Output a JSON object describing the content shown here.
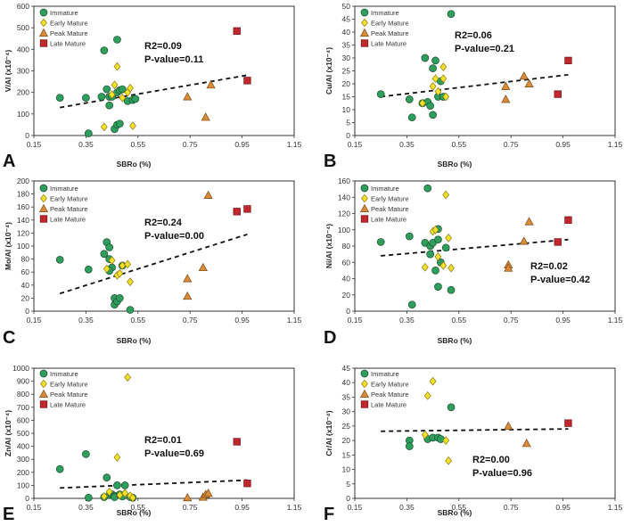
{
  "figure": {
    "legend_entries": [
      "Immature",
      "Early Mature",
      "Peak Mature",
      "Late Mature"
    ],
    "group_colors": {
      "Immature": "#2e9e5c",
      "Early Mature": "#f5e12a",
      "Peak Mature": "#d98c3a",
      "Late Mature": "#c0282d"
    }
  },
  "chart_data": [
    {
      "type": "scatter",
      "panel": "A",
      "xlabel": "SBRo (%)",
      "ylabel": "V/Al (x10⁻⁴)",
      "xlim": [
        0.15,
        1.15
      ],
      "ylim": [
        0,
        600
      ],
      "xticks": [
        "0.15",
        "0.35",
        "0.55",
        "0.75",
        "0.95",
        "1.15"
      ],
      "yticks": [
        "0",
        "100",
        "200",
        "300",
        "400",
        "500",
        "600"
      ],
      "stat_r2": "R2=0.09",
      "stat_p": "P-value=0.11",
      "trend": [
        [
          0.25,
          130
        ],
        [
          0.97,
          280
        ]
      ],
      "series": [
        {
          "name": "Immature",
          "points": [
            [
              0.25,
              175
            ],
            [
              0.35,
              175
            ],
            [
              0.36,
              10
            ],
            [
              0.41,
              180
            ],
            [
              0.42,
              395
            ],
            [
              0.43,
              215
            ],
            [
              0.44,
              180
            ],
            [
              0.44,
              140
            ],
            [
              0.45,
              180
            ],
            [
              0.46,
              30
            ],
            [
              0.47,
              50
            ],
            [
              0.47,
              200
            ],
            [
              0.48,
              55
            ],
            [
              0.48,
              210
            ],
            [
              0.51,
              160
            ],
            [
              0.53,
              165
            ],
            [
              0.54,
              170
            ],
            [
              0.47,
              445
            ],
            [
              0.49,
              215
            ]
          ]
        },
        {
          "name": "Early Mature",
          "points": [
            [
              0.42,
              40
            ],
            [
              0.45,
              190
            ],
            [
              0.46,
              235
            ],
            [
              0.47,
              320
            ],
            [
              0.49,
              175
            ],
            [
              0.51,
              200
            ],
            [
              0.52,
              220
            ],
            [
              0.53,
              45
            ]
          ]
        },
        {
          "name": "Peak Mature",
          "points": [
            [
              0.74,
              180
            ],
            [
              0.81,
              85
            ],
            [
              0.83,
              235
            ]
          ]
        },
        {
          "name": "Late Mature",
          "points": [
            [
              0.93,
              485
            ],
            [
              0.97,
              255
            ]
          ]
        }
      ]
    },
    {
      "type": "scatter",
      "panel": "B",
      "xlabel": "SBRo (%)",
      "ylabel": "Cu/Al (x10⁻⁴)",
      "xlim": [
        0.15,
        1.15
      ],
      "ylim": [
        0,
        50
      ],
      "xticks": [
        "0.15",
        "0.35",
        "0.55",
        "0.75",
        "0.95",
        "1.15"
      ],
      "yticks": [
        "0",
        "5",
        "10",
        "15",
        "20",
        "25",
        "30",
        "35",
        "40",
        "45",
        "50"
      ],
      "stat_r2": "R2=0.06",
      "stat_p": "P-value=0.21",
      "trend": [
        [
          0.25,
          15
        ],
        [
          0.97,
          23.5
        ]
      ],
      "series": [
        {
          "name": "Immature",
          "points": [
            [
              0.25,
              16
            ],
            [
              0.36,
              14
            ],
            [
              0.37,
              7
            ],
            [
              0.41,
              12.5
            ],
            [
              0.42,
              30
            ],
            [
              0.43,
              13
            ],
            [
              0.44,
              11.5
            ],
            [
              0.45,
              8
            ],
            [
              0.45,
              26
            ],
            [
              0.46,
              29
            ],
            [
              0.47,
              15
            ],
            [
              0.48,
              21
            ],
            [
              0.49,
              15
            ],
            [
              0.52,
              47
            ]
          ]
        },
        {
          "name": "Early Mature",
          "points": [
            [
              0.41,
              12.5
            ],
            [
              0.45,
              19
            ],
            [
              0.46,
              22
            ],
            [
              0.47,
              17
            ],
            [
              0.49,
              26.5
            ],
            [
              0.49,
              22
            ],
            [
              0.5,
              15
            ]
          ]
        },
        {
          "name": "Peak Mature",
          "points": [
            [
              0.73,
              19
            ],
            [
              0.73,
              14
            ],
            [
              0.8,
              23
            ],
            [
              0.82,
              20
            ]
          ]
        },
        {
          "name": "Late Mature",
          "points": [
            [
              0.93,
              16
            ],
            [
              0.97,
              29
            ]
          ]
        }
      ]
    },
    {
      "type": "scatter",
      "panel": "C",
      "xlabel": "SBRo (%)",
      "ylabel": "Mo/Al (x10⁻⁴)",
      "xlim": [
        0.15,
        1.15
      ],
      "ylim": [
        0,
        200
      ],
      "xticks": [
        "0.15",
        "0.35",
        "0.55",
        "0.75",
        "0.95",
        "1.15"
      ],
      "yticks": [
        "0",
        "20",
        "40",
        "60",
        "80",
        "100",
        "120",
        "140",
        "160",
        "180",
        "200"
      ],
      "stat_r2": "R2=0.24",
      "stat_p": "P-value=0.00",
      "trend": [
        [
          0.25,
          27
        ],
        [
          0.97,
          118
        ]
      ],
      "series": [
        {
          "name": "Immature",
          "points": [
            [
              0.25,
              79
            ],
            [
              0.36,
              64
            ],
            [
              0.42,
              88
            ],
            [
              0.43,
              106
            ],
            [
              0.44,
              98
            ],
            [
              0.44,
              80
            ],
            [
              0.45,
              67
            ],
            [
              0.46,
              20
            ],
            [
              0.46,
              10
            ],
            [
              0.47,
              15
            ],
            [
              0.48,
              20
            ],
            [
              0.49,
              70
            ],
            [
              0.52,
              2
            ],
            [
              0.44,
              62
            ]
          ]
        },
        {
          "name": "Early Mature",
          "points": [
            [
              0.43,
              65
            ],
            [
              0.45,
              78
            ],
            [
              0.47,
              55
            ],
            [
              0.48,
              58
            ],
            [
              0.49,
              70
            ],
            [
              0.51,
              72
            ],
            [
              0.52,
              45
            ]
          ]
        },
        {
          "name": "Peak Mature",
          "points": [
            [
              0.74,
              23
            ],
            [
              0.74,
              50
            ],
            [
              0.8,
              67
            ],
            [
              0.82,
              178
            ]
          ]
        },
        {
          "name": "Late Mature",
          "points": [
            [
              0.93,
              153
            ],
            [
              0.97,
              157
            ]
          ]
        }
      ]
    },
    {
      "type": "scatter",
      "panel": "D",
      "xlabel": "SBRo (%)",
      "ylabel": "Ni/Al (x10⁻⁴)",
      "xlim": [
        0.15,
        1.15
      ],
      "ylim": [
        0,
        160
      ],
      "xticks": [
        "0.15",
        "0.35",
        "0.55",
        "0.75",
        "0.95",
        "1.15"
      ],
      "yticks": [
        "0",
        "20",
        "40",
        "60",
        "80",
        "100",
        "120",
        "140",
        "160"
      ],
      "stat_r2": "R2=0.02",
      "stat_p": "P-value=0.42",
      "trend": [
        [
          0.25,
          68
        ],
        [
          0.97,
          88
        ]
      ],
      "series": [
        {
          "name": "Immature",
          "points": [
            [
              0.25,
              85
            ],
            [
              0.36,
              92
            ],
            [
              0.37,
              8
            ],
            [
              0.42,
              84
            ],
            [
              0.43,
              151
            ],
            [
              0.44,
              80
            ],
            [
              0.44,
              70
            ],
            [
              0.45,
              84
            ],
            [
              0.46,
              50
            ],
            [
              0.47,
              101
            ],
            [
              0.47,
              88
            ],
            [
              0.48,
              60
            ],
            [
              0.47,
              30
            ],
            [
              0.5,
              78
            ],
            [
              0.52,
              26
            ]
          ]
        },
        {
          "name": "Early Mature",
          "points": [
            [
              0.42,
              54
            ],
            [
              0.45,
              98
            ],
            [
              0.46,
              100
            ],
            [
              0.47,
              67
            ],
            [
              0.49,
              56
            ],
            [
              0.5,
              143
            ],
            [
              0.51,
              90
            ],
            [
              0.52,
              53
            ]
          ]
        },
        {
          "name": "Peak Mature",
          "points": [
            [
              0.74,
              57
            ],
            [
              0.74,
              53
            ],
            [
              0.8,
              86
            ],
            [
              0.82,
              110
            ]
          ]
        },
        {
          "name": "Late Mature",
          "points": [
            [
              0.93,
              85
            ],
            [
              0.97,
              112
            ]
          ]
        }
      ]
    },
    {
      "type": "scatter",
      "panel": "E",
      "xlabel": "SBRo (%)",
      "ylabel": "Zn/Al (x10⁻⁴)",
      "xlim": [
        0.15,
        1.15
      ],
      "ylim": [
        0,
        1000
      ],
      "xticks": [
        "0.15",
        "0.35",
        "0.55",
        "0.75",
        "0.95",
        "1.15"
      ],
      "yticks": [
        "0",
        "100",
        "200",
        "300",
        "400",
        "500",
        "600",
        "700",
        "800",
        "900",
        "1000"
      ],
      "stat_r2": "R2=0.01",
      "stat_p": "P-value=0.69",
      "trend": [
        [
          0.25,
          80
        ],
        [
          0.97,
          140
        ]
      ],
      "series": [
        {
          "name": "Immature",
          "points": [
            [
              0.25,
              225
            ],
            [
              0.35,
              340
            ],
            [
              0.36,
              5
            ],
            [
              0.42,
              10
            ],
            [
              0.43,
              160
            ],
            [
              0.44,
              25
            ],
            [
              0.45,
              30
            ],
            [
              0.46,
              20
            ],
            [
              0.46,
              10
            ],
            [
              0.47,
              100
            ],
            [
              0.48,
              30
            ],
            [
              0.49,
              15
            ],
            [
              0.5,
              100
            ],
            [
              0.52,
              10
            ],
            [
              0.53,
              5
            ]
          ]
        },
        {
          "name": "Early Mature",
          "points": [
            [
              0.42,
              15
            ],
            [
              0.44,
              50
            ],
            [
              0.47,
              315
            ],
            [
              0.48,
              25
            ],
            [
              0.5,
              40
            ],
            [
              0.51,
              930
            ],
            [
              0.52,
              20
            ],
            [
              0.53,
              5
            ]
          ]
        },
        {
          "name": "Peak Mature",
          "points": [
            [
              0.74,
              5
            ],
            [
              0.8,
              10
            ],
            [
              0.81,
              30
            ],
            [
              0.82,
              40
            ]
          ]
        },
        {
          "name": "Late Mature",
          "points": [
            [
              0.93,
              435
            ],
            [
              0.97,
              115
            ]
          ]
        }
      ]
    },
    {
      "type": "scatter",
      "panel": "F",
      "xlabel": "SBRo (%)",
      "ylabel": "Cr/Al (x10⁻⁴)",
      "xlim": [
        0.15,
        1.15
      ],
      "ylim": [
        0,
        45
      ],
      "xticks": [
        "0.15",
        "0.35",
        "0.55",
        "0.75",
        "0.95",
        "1.15"
      ],
      "yticks": [
        "0",
        "5",
        "10",
        "15",
        "20",
        "25",
        "30",
        "35",
        "40",
        "45"
      ],
      "stat_r2": "R2=0.00",
      "stat_p": "P-value=0.96",
      "trend": [
        [
          0.25,
          23.2
        ],
        [
          0.97,
          24
        ]
      ],
      "series": [
        {
          "name": "Immature",
          "points": [
            [
              0.36,
              20
            ],
            [
              0.36,
              18
            ],
            [
              0.43,
              20.5
            ],
            [
              0.45,
              21
            ],
            [
              0.47,
              21
            ],
            [
              0.48,
              20.5
            ],
            [
              0.52,
              31.5
            ]
          ]
        },
        {
          "name": "Early Mature",
          "points": [
            [
              0.42,
              22
            ],
            [
              0.43,
              35.5
            ],
            [
              0.45,
              40.5
            ],
            [
              0.5,
              20
            ],
            [
              0.51,
              13
            ]
          ]
        },
        {
          "name": "Peak Mature",
          "points": [
            [
              0.74,
              25
            ],
            [
              0.81,
              19
            ]
          ]
        },
        {
          "name": "Late Mature",
          "points": [
            [
              0.97,
              26
            ]
          ]
        }
      ]
    }
  ]
}
